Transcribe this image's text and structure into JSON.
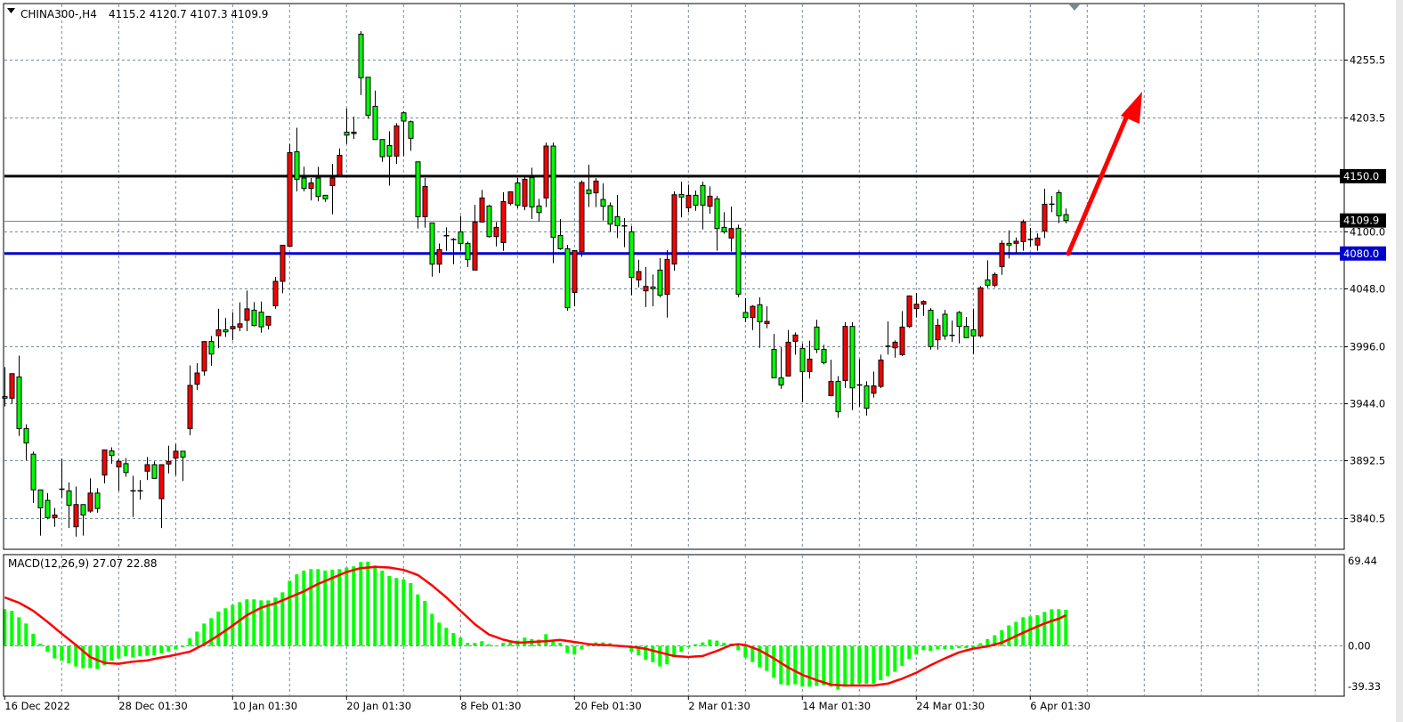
{
  "chart_data": {
    "type": "candlestick",
    "header": {
      "symbol": "CHINA300-,H4",
      "ohlc": "4115.2 4120.7 4107.3 4109.9"
    },
    "price_axis": {
      "range": [
        3812.2,
        4306.3
      ],
      "ticks": [
        "4255.5",
        "4203.5",
        "4100.0",
        "4048.0",
        "3996.0",
        "3944.0",
        "3892.5",
        "3840.5"
      ],
      "grid": true
    },
    "x_labels": [
      "16 Dec 2022",
      "28 Dec 01:30",
      "10 Jan 01:30",
      "20 Jan 01:30",
      "8 Feb 01:30",
      "20 Feb 01:30",
      "2 Mar 01:30",
      "14 Mar 01:30",
      "24 Mar 01:30",
      "6 Apr 01:30"
    ],
    "x_label_every_bars": 16,
    "levels": {
      "resistance": {
        "value": 4150.0,
        "label": "4150.0",
        "color": "#000000"
      },
      "support": {
        "value": 4080.0,
        "label": "4080.0",
        "color": "#0000cc"
      },
      "current": {
        "value": 4109.9,
        "label": "4109.9",
        "color": "#778899"
      }
    },
    "colors": {
      "up": "#ff0000",
      "down": "#00ff00",
      "grid": "#778899",
      "arrow": "#ff0000",
      "macd_hist": "#00ff00",
      "macd_signal": "#ff0000"
    },
    "candles_ohlc": [
      [
        3950.5,
        3977.1,
        3941.6,
        3949.0
      ],
      [
        3949.0,
        3971.2,
        3944.0,
        3971.2
      ],
      [
        3968.3,
        3987.5,
        3914.9,
        3921.5
      ],
      [
        3921.5,
        3925.3,
        3892.7,
        3908.4
      ],
      [
        3898.3,
        3900.7,
        3854.2,
        3866.0
      ],
      [
        3866.0,
        3866.0,
        3824.6,
        3849.7
      ],
      [
        3856.5,
        3863.1,
        3839.4,
        3840.9
      ],
      [
        3840.9,
        3849.7,
        3832.6,
        3843.2
      ],
      [
        3866.6,
        3894.2,
        3858.6,
        3866.6
      ],
      [
        3865.1,
        3872.8,
        3831.4,
        3852.1
      ],
      [
        3832.6,
        3869.0,
        3823.7,
        3852.7
      ],
      [
        3852.7,
        3852.7,
        3824.6,
        3843.2
      ],
      [
        3846.8,
        3876.4,
        3845.3,
        3863.1
      ],
      [
        3863.1,
        3867.5,
        3845.3,
        3849.1
      ],
      [
        3879.4,
        3902.2,
        3871.9,
        3902.2
      ],
      [
        3901.3,
        3904.5,
        3889.7,
        3897.1
      ],
      [
        3886.8,
        3894.2,
        3865.1,
        3891.8
      ],
      [
        3889.7,
        3894.8,
        3877.9,
        3881.7
      ],
      [
        3865.1,
        3878.8,
        3841.4,
        3865.1
      ],
      [
        3865.1,
        3874.9,
        3857.1,
        3865.1
      ],
      [
        3882.9,
        3895.7,
        3874.9,
        3888.8
      ],
      [
        3888.8,
        3891.8,
        3876.4,
        3876.4
      ],
      [
        3858.0,
        3888.8,
        3831.4,
        3888.8
      ],
      [
        3889.4,
        3906.0,
        3880.9,
        3891.8
      ],
      [
        3894.8,
        3907.5,
        3879.1,
        3901.0
      ],
      [
        3901.0,
        3901.0,
        3874.0,
        3895.7
      ],
      [
        3921.5,
        3978.6,
        3915.5,
        3960.6
      ],
      [
        3961.7,
        3980.7,
        3956.4,
        3971.8
      ],
      [
        3973.6,
        4000.3,
        3969.4,
        4000.3
      ],
      [
        4000.3,
        4005.3,
        3978.3,
        3989.0
      ],
      [
        4005.6,
        4029.9,
        3994.3,
        4010.9
      ],
      [
        4010.9,
        4021.6,
        4004.4,
        4009.1
      ],
      [
        4011.8,
        4026.9,
        4001.4,
        4013.9
      ],
      [
        4013.3,
        4035.8,
        4009.7,
        4016.3
      ],
      [
        4019.5,
        4046.5,
        4009.7,
        4029.9
      ],
      [
        4028.7,
        4036.0,
        4014.0,
        4014.8
      ],
      [
        4026.9,
        4036.5,
        4008.3,
        4013.6
      ],
      [
        4015.1,
        4023.1,
        4011.2,
        4023.1
      ],
      [
        4032.7,
        4058.8,
        4030.0,
        4054.8
      ],
      [
        4054.8,
        4087.5,
        4044.0,
        4087.5
      ],
      [
        4086.5,
        4179.2,
        4086.5,
        4171.4
      ],
      [
        4172.2,
        4193.9,
        4136.2,
        4147.2
      ],
      [
        4148.3,
        4158.5,
        4136.2,
        4138.9
      ],
      [
        4138.9,
        4148.3,
        4128.1,
        4143.9
      ],
      [
        4148.3,
        4158.5,
        4127.3,
        4131.6
      ],
      [
        4132.7,
        4132.7,
        4126.8,
        4129.5
      ],
      [
        4141.5,
        4161.2,
        4115.5,
        4148.3
      ],
      [
        4151.0,
        4175.1,
        4151.0,
        4168.9
      ],
      [
        4189.9,
        4211.4,
        4179.2,
        4187.2
      ],
      [
        4188.6,
        4203.9,
        4183.7,
        4189.9
      ],
      [
        4278.6,
        4281.3,
        4223.5,
        4239.1
      ],
      [
        4239.6,
        4239.6,
        4202.0,
        4205.2
      ],
      [
        4213.3,
        4227.5,
        4183.2,
        4183.2
      ],
      [
        4183.2,
        4183.2,
        4163.0,
        4167.6
      ],
      [
        4177.8,
        4190.7,
        4141.5,
        4168.2
      ],
      [
        4168.2,
        4198.0,
        4161.2,
        4195.6
      ],
      [
        4207.4,
        4208.7,
        4168.2,
        4199.9
      ],
      [
        4199.3,
        4200.4,
        4173.0,
        4184.3
      ],
      [
        4163.0,
        4163.0,
        4102.6,
        4113.3
      ],
      [
        4113.3,
        4148.3,
        4103.4,
        4140.7
      ],
      [
        4107.7,
        4107.7,
        4059.0,
        4070.3
      ],
      [
        4070.3,
        4089.1,
        4062.3,
        4083.5
      ],
      [
        4096.1,
        4103.7,
        4082.4,
        4096.1
      ],
      [
        4092.6,
        4094.0,
        4070.3,
        4092.6
      ],
      [
        4099.6,
        4114.1,
        4082.4,
        4089.1
      ],
      [
        4089.1,
        4090.8,
        4067.7,
        4074.6
      ],
      [
        4065.0,
        4124.1,
        4065.0,
        4108.5
      ],
      [
        4108.5,
        4137.5,
        4108.5,
        4130.3
      ],
      [
        4123.0,
        4124.1,
        4094.5,
        4095.3
      ],
      [
        4095.3,
        4108.5,
        4086.5,
        4103.7
      ],
      [
        4089.9,
        4135.4,
        4082.4,
        4127.0
      ],
      [
        4125.4,
        4135.9,
        4123.5,
        4135.9
      ],
      [
        4143.9,
        4148.3,
        4120.9,
        4123.8
      ],
      [
        4122.7,
        4149.6,
        4119.2,
        4147.2
      ],
      [
        4148.8,
        4157.7,
        4111.2,
        4122.2
      ],
      [
        4123.0,
        4129.5,
        4108.8,
        4117.1
      ],
      [
        4130.3,
        4180.5,
        4122.0,
        4177.3
      ],
      [
        4177.3,
        4180.5,
        4071.2,
        4094.6
      ],
      [
        4096.4,
        4111.2,
        4083.3,
        4084.3
      ],
      [
        4084.3,
        4087.8,
        4028.2,
        4030.9
      ],
      [
        4044.8,
        4082.7,
        4032.2,
        4082.7
      ],
      [
        4081.7,
        4146.1,
        4077.1,
        4144.3
      ],
      [
        4137.6,
        4160.4,
        4122.0,
        4134.1
      ],
      [
        4134.9,
        4148.3,
        4122.0,
        4145.6
      ],
      [
        4128.9,
        4143.5,
        4109.9,
        4122.8
      ],
      [
        4123.3,
        4126.3,
        4099.4,
        4106.6
      ],
      [
        4113.4,
        4133.0,
        4094.0,
        4105.3
      ],
      [
        4105.0,
        4112.0,
        4085.7,
        4105.0
      ],
      [
        4099.7,
        4104.8,
        4042.2,
        4058.3
      ],
      [
        4056.1,
        4074.4,
        4049.4,
        4063.7
      ],
      [
        4046.2,
        4067.7,
        4031.4,
        4050.2
      ],
      [
        4049.7,
        4061.0,
        4032.2,
        4048.1
      ],
      [
        4065.0,
        4075.8,
        4040.3,
        4042.2
      ],
      [
        4043.0,
        4083.0,
        4022.0,
        4074.7
      ],
      [
        4070.4,
        4136.2,
        4064.5,
        4133.2
      ],
      [
        4133.5,
        4145.1,
        4112.8,
        4131.1
      ],
      [
        4121.4,
        4142.4,
        4117.4,
        4132.7
      ],
      [
        4132.7,
        4137.0,
        4118.7,
        4123.8
      ],
      [
        4141.6,
        4145.1,
        4101.8,
        4123.8
      ],
      [
        4122.8,
        4140.8,
        4116.1,
        4131.9
      ],
      [
        4129.5,
        4132.2,
        4082.5,
        4102.6
      ],
      [
        4103.7,
        4117.4,
        4097.8,
        4099.7
      ],
      [
        4094.0,
        4122.5,
        4081.7,
        4102.6
      ],
      [
        4102.9,
        4106.1,
        4040.5,
        4043.2
      ],
      [
        4026.6,
        4039.5,
        4018.0,
        4022.0
      ],
      [
        4022.0,
        4033.3,
        4010.7,
        4032.2
      ],
      [
        4033.6,
        4040.3,
        3994.6,
        4018.2
      ],
      [
        4016.6,
        4032.2,
        4012.3,
        4018.5
      ],
      [
        3993.2,
        4007.2,
        3967.5,
        3967.5
      ],
      [
        3967.5,
        3995.1,
        3957.5,
        3961.0
      ],
      [
        3969.1,
        4010.7,
        3969.1,
        3999.7
      ],
      [
        4000.5,
        4008.6,
        3988.4,
        4006.2
      ],
      [
        3994.1,
        3998.4,
        3945.4,
        3973.1
      ],
      [
        3973.1,
        4001.0,
        3966.9,
        3984.4
      ],
      [
        4013.4,
        4020.1,
        3989.8,
        3993.2
      ],
      [
        3993.2,
        3997.3,
        3979.6,
        3981.2
      ],
      [
        3951.3,
        3983.9,
        3951.3,
        3964.2
      ],
      [
        3964.2,
        3969.1,
        3931.2,
        3936.8
      ],
      [
        3965.0,
        4017.7,
        3958.3,
        4014.0
      ],
      [
        4014.0,
        4017.7,
        3938.2,
        3958.3
      ],
      [
        3961.0,
        3984.4,
        3941.4,
        3961.0
      ],
      [
        3960.2,
        3964.2,
        3933.3,
        3940.0
      ],
      [
        3953.5,
        3973.1,
        3949.5,
        3960.2
      ],
      [
        3959.7,
        3988.4,
        3958.1,
        3983.6
      ],
      [
        3996.0,
        4018.5,
        3988.4,
        3996.0
      ],
      [
        3994.6,
        4001.3,
        3985.7,
        3999.7
      ],
      [
        3988.4,
        4027.9,
        3987.1,
        4013.4
      ],
      [
        4013.9,
        4041.6,
        4012.6,
        4041.6
      ],
      [
        4030.1,
        4044.3,
        4022.0,
        4034.1
      ],
      [
        4034.1,
        4037.6,
        4023.6,
        4036.5
      ],
      [
        4028.7,
        4030.6,
        3993.0,
        3995.7
      ],
      [
        4001.9,
        4020.9,
        3993.0,
        4015.0
      ],
      [
        4025.0,
        4029.0,
        4001.9,
        4005.4
      ],
      [
        4005.9,
        4019.3,
        4000.0,
        4005.9
      ],
      [
        4026.6,
        4027.9,
        3998.6,
        4014.0
      ],
      [
        4014.0,
        4022.5,
        4003.8,
        4003.8
      ],
      [
        4011.0,
        4030.1,
        3989.0,
        4005.4
      ],
      [
        4005.4,
        4050.5,
        4003.8,
        4048.9
      ],
      [
        4056.1,
        4073.9,
        4048.9,
        4051.3
      ],
      [
        4051.3,
        4062.9,
        4049.4,
        4061.0
      ],
      [
        4068.2,
        4091.9,
        4060.7,
        4089.2
      ],
      [
        4089.2,
        4101.0,
        4075.5,
        4087.6
      ],
      [
        4089.2,
        4094.6,
        4080.6,
        4091.1
      ],
      [
        4090.8,
        4110.7,
        4082.5,
        4108.5
      ],
      [
        4092.7,
        4103.2,
        4086.5,
        4092.7
      ],
      [
        4087.6,
        4098.1,
        4082.5,
        4094.0
      ],
      [
        4100.5,
        4138.6,
        4094.0,
        4124.6
      ],
      [
        4124.6,
        4132.2,
        4117.4,
        4124.6
      ],
      [
        4135.1,
        4137.5,
        4107.5,
        4114.2
      ],
      [
        4115.2,
        4120.7,
        4107.3,
        4109.9
      ]
    ],
    "macd": {
      "label": "MACD(12,26,9) 27.07 22.88",
      "range": [
        -39.33,
        69.44
      ],
      "axis_ticks": [
        "69.44",
        "0.00",
        "-39.33"
      ],
      "histogram": [
        27.5,
        26.3,
        21.3,
        16.5,
        8.7,
        1.1,
        -5.2,
        -10.3,
        -12.1,
        -14.2,
        -16.5,
        -17.8,
        -17.8,
        -18.5,
        -15.5,
        -11.9,
        -10.3,
        -8.7,
        -9.6,
        -8.7,
        -8.3,
        -8.0,
        -6.4,
        -5.1,
        -3.4,
        -1.6,
        5.1,
        10.3,
        16.5,
        20.6,
        25.7,
        28.2,
        30.9,
        32.9,
        35.1,
        35.1,
        34.3,
        34.3,
        36.4,
        40.5,
        49.4,
        54.3,
        57.2,
        58.3,
        58.3,
        57.2,
        57.9,
        58.3,
        59.5,
        60.4,
        63.8,
        64.1,
        61.1,
        57.2,
        53.1,
        51.5,
        50.3,
        47.6,
        38.9,
        33.9,
        24.0,
        17.2,
        13.2,
        9.2,
        5.7,
        1.6,
        1.6,
        2.9,
        0.6,
        -0.5,
        1.6,
        2.3,
        3.4,
        5.7,
        4.6,
        4.1,
        8.3,
        3.4,
        1.6,
        -6.2,
        -7.4,
        -3.4,
        -0.6,
        2.0,
        2.0,
        1.4,
        -0.2,
        -0.2,
        -5.2,
        -8.0,
        -11.4,
        -13.2,
        -16.5,
        -14.9,
        -8.0,
        -5.2,
        -1.8,
        0.6,
        2.0,
        4.1,
        3.4,
        1.8,
        1.1,
        -4.1,
        -9.6,
        -13.1,
        -17.2,
        -19.9,
        -25.2,
        -30.2,
        -30.9,
        -30.2,
        -32.0,
        -32.0,
        -31.4,
        -30.9,
        -32.0,
        -34.3,
        -32.0,
        -30.9,
        -29.7,
        -29.7,
        -29.7,
        -27.0,
        -24.0,
        -20.6,
        -16.0,
        -10.8,
        -7.4,
        -3.9,
        -4.6,
        -3.2,
        -3.2,
        -3.2,
        -2.5,
        -2.5,
        -2.5,
        1.4,
        4.6,
        7.5,
        11.4,
        15.1,
        17.8,
        21.3,
        22.0,
        22.9,
        25.4,
        27.5,
        27.5,
        27.07
      ],
      "signal": [
        36.6,
        34.5,
        32.5,
        29.4,
        26.3,
        22.1,
        17.8,
        13.3,
        8.7,
        4.4,
        0,
        -4.6,
        -9.2,
        -11.5,
        -13.7,
        -14.1,
        -14.4,
        -13.6,
        -12.8,
        -12.3,
        -11.9,
        -10.7,
        -9.6,
        -8.6,
        -7.5,
        -6.3,
        -5.1,
        -2.3,
        0.5,
        3.9,
        7.4,
        11.1,
        14.9,
        18.9,
        22.9,
        25.8,
        28.6,
        30.4,
        32.0,
        34.3,
        36.6,
        38.9,
        41.2,
        44.1,
        46.9,
        49.2,
        51.5,
        53.8,
        56.1,
        57.6,
        59.1,
        59.5,
        60.0,
        59.8,
        59.5,
        58.6,
        57.7,
        55.8,
        53.8,
        49.9,
        45.8,
        41.2,
        36.6,
        31.5,
        26.3,
        21.2,
        16.0,
        12.0,
        8.0,
        6.1,
        4.1,
        2.9,
        1.8,
        2.0,
        2.3,
        2.7,
        2.9,
        3.4,
        3.9,
        3.1,
        2.3,
        1.5,
        0.6,
        0.3,
        0,
        -0.3,
        -0.6,
        -1.0,
        -1.4,
        -2.1,
        -2.9,
        -4.3,
        -5.7,
        -7.1,
        -8.5,
        -8.8,
        -9.2,
        -8.8,
        -8.5,
        -6.4,
        -4.6,
        -2.3,
        0,
        0.6,
        0,
        -2.0,
        -4.1,
        -7.2,
        -10.3,
        -13.8,
        -17.2,
        -20.1,
        -22.9,
        -24.9,
        -27.0,
        -28.7,
        -30.5,
        -30.8,
        -31.1,
        -31.1,
        -31.1,
        -31.1,
        -31.1,
        -30.4,
        -29.7,
        -27.8,
        -25.9,
        -23.6,
        -21.3,
        -18.4,
        -15.5,
        -12.9,
        -10.3,
        -8.0,
        -5.7,
        -4.2,
        -2.8,
        -1.9,
        -1.1,
        0.4,
        1.8,
        4.3,
        6.9,
        9.4,
        11.9,
        14.2,
        16.5,
        18.5,
        20.2,
        22.88
      ]
    }
  }
}
